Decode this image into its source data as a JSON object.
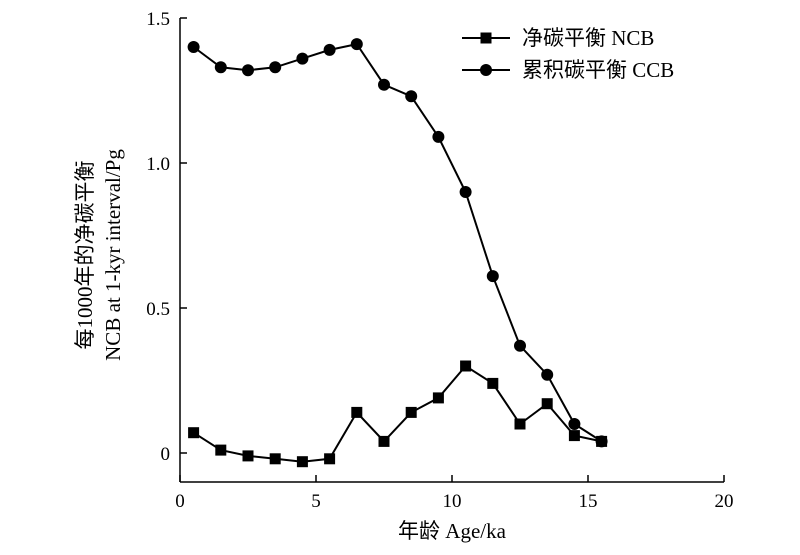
{
  "chart_data": {
    "type": "line",
    "title": "",
    "xlabel": "年龄 Age/ka",
    "ylabel_lines": [
      "每1000年的净碳平衡",
      "NCB at 1-kyr interval/Pg"
    ],
    "xlim": [
      0,
      20
    ],
    "ylim": [
      -0.1,
      1.5
    ],
    "xticks": [
      0,
      5,
      10,
      15,
      20
    ],
    "yticks": [
      0,
      0.5,
      1.0,
      1.5
    ],
    "xtick_labels": [
      "0",
      "5",
      "10",
      "15",
      "20"
    ],
    "ytick_labels": [
      "0",
      "0.5",
      "1.0",
      "1.5"
    ],
    "grid": false,
    "legend_position": "top-right",
    "series": [
      {
        "name": "净碳平衡 NCB",
        "marker": "square",
        "x": [
          0.5,
          1.5,
          2.5,
          3.5,
          4.5,
          5.5,
          6.5,
          7.5,
          8.5,
          9.5,
          10.5,
          11.5,
          12.5,
          13.5,
          14.5,
          15.5
        ],
        "values": [
          0.07,
          0.01,
          -0.01,
          -0.02,
          -0.03,
          -0.02,
          0.14,
          0.04,
          0.14,
          0.19,
          0.3,
          0.24,
          0.1,
          0.17,
          0.06,
          0.04
        ]
      },
      {
        "name": "累积碳平衡 CCB",
        "marker": "circle",
        "x": [
          0.5,
          1.5,
          2.5,
          3.5,
          4.5,
          5.5,
          6.5,
          7.5,
          8.5,
          9.5,
          10.5,
          11.5,
          12.5,
          13.5,
          14.5,
          15.5
        ],
        "values": [
          1.4,
          1.33,
          1.32,
          1.33,
          1.36,
          1.39,
          1.41,
          1.27,
          1.23,
          1.09,
          0.9,
          0.61,
          0.37,
          0.27,
          0.1,
          0.04
        ]
      }
    ]
  }
}
